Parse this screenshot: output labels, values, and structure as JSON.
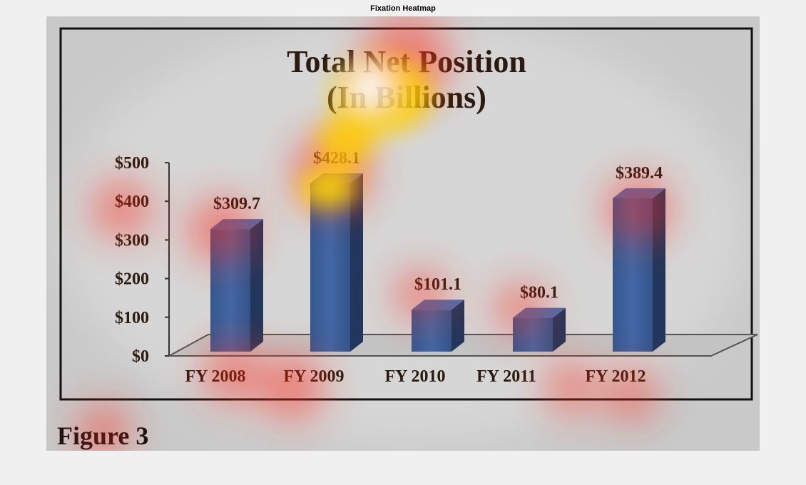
{
  "figure": {
    "title": "Fixation Heatmap"
  },
  "image": {
    "caption": "Figure 3"
  },
  "chart_data": {
    "type": "bar",
    "title": "Total Net Position",
    "subtitle": "(In Billions)",
    "categories": [
      "FY 2008",
      "FY 2009",
      "FY 2010",
      "FY 2011",
      "FY 2012"
    ],
    "values": [
      309.7,
      428.1,
      101.1,
      80.1,
      389.4
    ],
    "value_labels": [
      "$309.7",
      "$428.1",
      "$101.1",
      "$80.1",
      "$389.4"
    ],
    "y_ticks": [
      "$0",
      "$100",
      "$200",
      "$300",
      "$400",
      "$500"
    ],
    "y_tick_values": [
      0,
      100,
      200,
      300,
      400,
      500
    ],
    "ylim": [
      0,
      500
    ],
    "xlabel": "",
    "ylabel": "",
    "grid": false,
    "bar_style": "3d",
    "colors": {
      "bar_front": "#3a5e9a",
      "bar_side": "#22375d",
      "bar_top": "#4a6fae",
      "text": "#2a1a10",
      "background": "#c9c9c9"
    }
  },
  "overlay": {
    "type": "fixation heatmap",
    "colors": [
      "#ff0000",
      "#ffff00",
      "#ffffff"
    ]
  }
}
